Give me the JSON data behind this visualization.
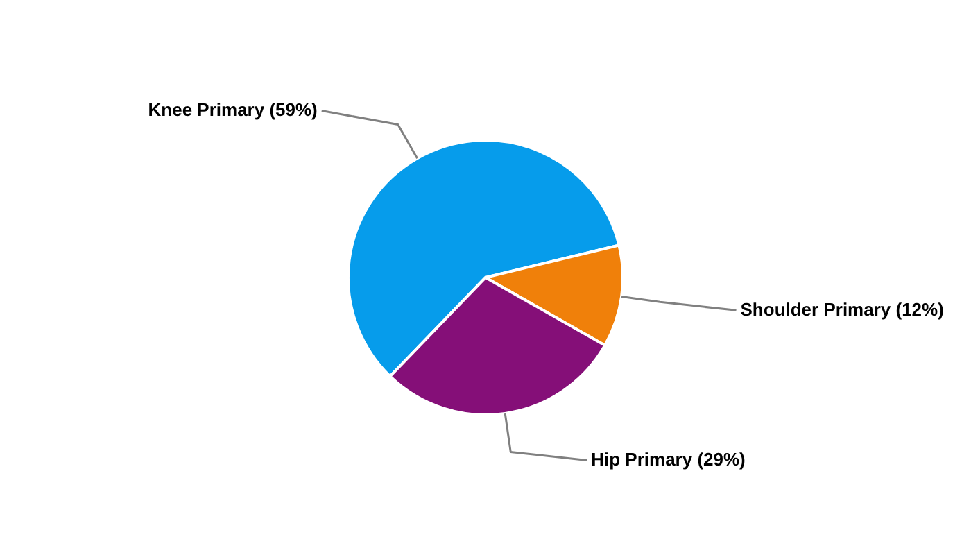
{
  "chart_data": {
    "type": "pie",
    "categories": [
      "Knee Primary",
      "Shoulder Primary",
      "Hip Primary"
    ],
    "values": [
      59,
      12,
      29
    ],
    "value_labels": [
      "(59%)",
      "(12%)",
      "(29%)"
    ],
    "colors": [
      "#069ceb",
      "#f0800a",
      "#850f78"
    ],
    "legend": false
  }
}
